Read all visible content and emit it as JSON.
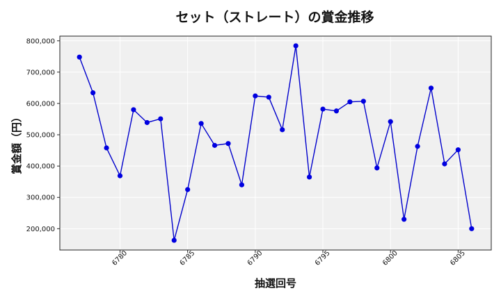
{
  "chart_data": {
    "type": "line",
    "title": "セット（ストレート）の賞金推移",
    "xlabel": "抽選回号",
    "ylabel": "賞金額（円）",
    "x": [
      6777,
      6778,
      6779,
      6780,
      6781,
      6782,
      6783,
      6784,
      6785,
      6786,
      6787,
      6788,
      6789,
      6790,
      6791,
      6792,
      6793,
      6794,
      6795,
      6796,
      6797,
      6798,
      6799,
      6800,
      6801,
      6802,
      6803,
      6804,
      6805,
      6806
    ],
    "y": [
      748000,
      634000,
      458000,
      369000,
      580000,
      539000,
      551000,
      163000,
      325000,
      536000,
      466000,
      472000,
      340000,
      624000,
      620000,
      516000,
      784000,
      365000,
      582000,
      576000,
      605000,
      607000,
      394000,
      542000,
      230000,
      463000,
      649000,
      407000,
      452000,
      200000
    ],
    "x_ticks": [
      "6780",
      "6785",
      "6790",
      "6795",
      "6800",
      "6805"
    ],
    "y_ticks": [
      "200,000",
      "300,000",
      "400,000",
      "500,000",
      "600,000",
      "700,000",
      "800,000"
    ],
    "xlim": [
      6775.55,
      6807.45
    ],
    "ylim": [
      132000,
      815000
    ],
    "grid": true,
    "colors": {
      "line": "#0000cc",
      "marker": "#0000e0",
      "plot_bg": "#f0f0f0",
      "grid": "#ffffff"
    }
  }
}
